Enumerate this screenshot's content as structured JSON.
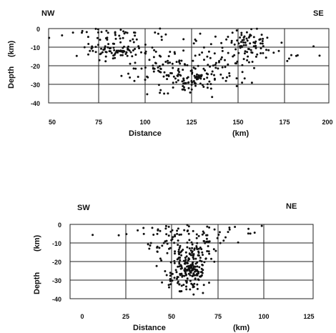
{
  "chart_data": [
    {
      "type": "scatter",
      "title": "",
      "corner_labels": {
        "left": "NW",
        "right": "SE"
      },
      "xlabel": "Distance",
      "xunit": "(km)",
      "ylabel": "Depth",
      "yunit": "(km)",
      "xlim": [
        50,
        200
      ],
      "ylim": [
        -40,
        0
      ],
      "xticks": [
        50,
        75,
        100,
        125,
        150,
        175,
        200
      ],
      "yticks": [
        0,
        -10,
        -20,
        -30,
        -40
      ],
      "grid": true,
      "clusters": [
        {
          "cx": 62,
          "cy": -4,
          "sx": 4,
          "sy": 2,
          "n": 4
        },
        {
          "cx": 85,
          "cy": -12,
          "sx": 8,
          "sy": 2,
          "n": 70
        },
        {
          "cx": 92,
          "cy": -6,
          "sx": 10,
          "sy": 3,
          "n": 25
        },
        {
          "cx": 110,
          "cy": -24,
          "sx": 10,
          "sy": 4,
          "n": 55
        },
        {
          "cx": 126,
          "cy": -28,
          "sx": 8,
          "sy": 4,
          "n": 70
        },
        {
          "cx": 138,
          "cy": -22,
          "sx": 9,
          "sy": 5,
          "n": 55
        },
        {
          "cx": 120,
          "cy": -12,
          "sx": 18,
          "sy": 6,
          "n": 45
        },
        {
          "cx": 158,
          "cy": -6,
          "sx": 7,
          "sy": 4,
          "n": 55
        },
        {
          "cx": 160,
          "cy": -12,
          "sx": 6,
          "sy": 3,
          "n": 25
        },
        {
          "cx": 185,
          "cy": -15,
          "sx": 8,
          "sy": 4,
          "n": 7
        },
        {
          "cx": 100,
          "cy": -2,
          "sx": 25,
          "sy": 1.5,
          "n": 18
        }
      ]
    },
    {
      "type": "scatter",
      "title": "",
      "corner_labels": {
        "left": "SW",
        "right": "NE"
      },
      "xlabel": "Distance",
      "xunit": "(km)",
      "ylabel": "Depth",
      "yunit": "(km)",
      "xlim": [
        -5,
        125
      ],
      "ylim": [
        -40,
        0
      ],
      "xticks": [
        0,
        25,
        50,
        75,
        100,
        125
      ],
      "yticks": [
        0,
        -10,
        -20,
        -30,
        -40
      ],
      "grid": true,
      "clusters": [
        {
          "cx": 60,
          "cy": -25,
          "sx": 4,
          "sy": 5,
          "n": 140
        },
        {
          "cx": 58,
          "cy": -14,
          "sx": 10,
          "sy": 5,
          "n": 90
        },
        {
          "cx": 60,
          "cy": -4,
          "sx": 12,
          "sy": 2.5,
          "n": 50
        },
        {
          "cx": 52,
          "cy": -30,
          "sx": 3,
          "sy": 3,
          "n": 25
        },
        {
          "cx": 33,
          "cy": -8,
          "sx": 5,
          "sy": 5,
          "n": 9
        },
        {
          "cx": 90,
          "cy": -5,
          "sx": 12,
          "sy": 4,
          "n": 9
        },
        {
          "cx": 122,
          "cy": -6,
          "sx": 2,
          "sy": 1,
          "n": 1
        },
        {
          "cx": 5,
          "cy": -6,
          "sx": 1,
          "sy": 1,
          "n": 1
        }
      ]
    }
  ]
}
